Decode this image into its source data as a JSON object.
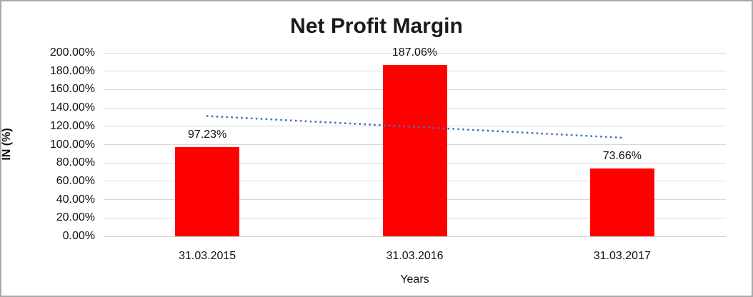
{
  "chart_data": {
    "type": "bar",
    "title": "Net Profit Margin",
    "xlabel": "Years",
    "ylabel": "IN (%)",
    "categories": [
      "31.03.2015",
      "31.03.2016",
      "31.03.2017"
    ],
    "values": [
      97.23,
      187.06,
      73.66
    ],
    "data_labels": [
      "97.23%",
      "187.06%",
      "73.66%"
    ],
    "ylim": [
      0,
      200
    ],
    "ytick_step": 20,
    "ytick_labels": [
      "0.00%",
      "20.00%",
      "40.00%",
      "60.00%",
      "80.00%",
      "100.00%",
      "120.00%",
      "140.00%",
      "160.00%",
      "180.00%",
      "200.00%"
    ],
    "grid": true,
    "legend_position": "none",
    "bar_color": "#ff0000",
    "gridline_color": "#d9d9d9",
    "trendline": {
      "type": "linear",
      "style": "dotted",
      "color": "#4472c4",
      "start_value": 131.1,
      "end_value": 107.5
    }
  }
}
